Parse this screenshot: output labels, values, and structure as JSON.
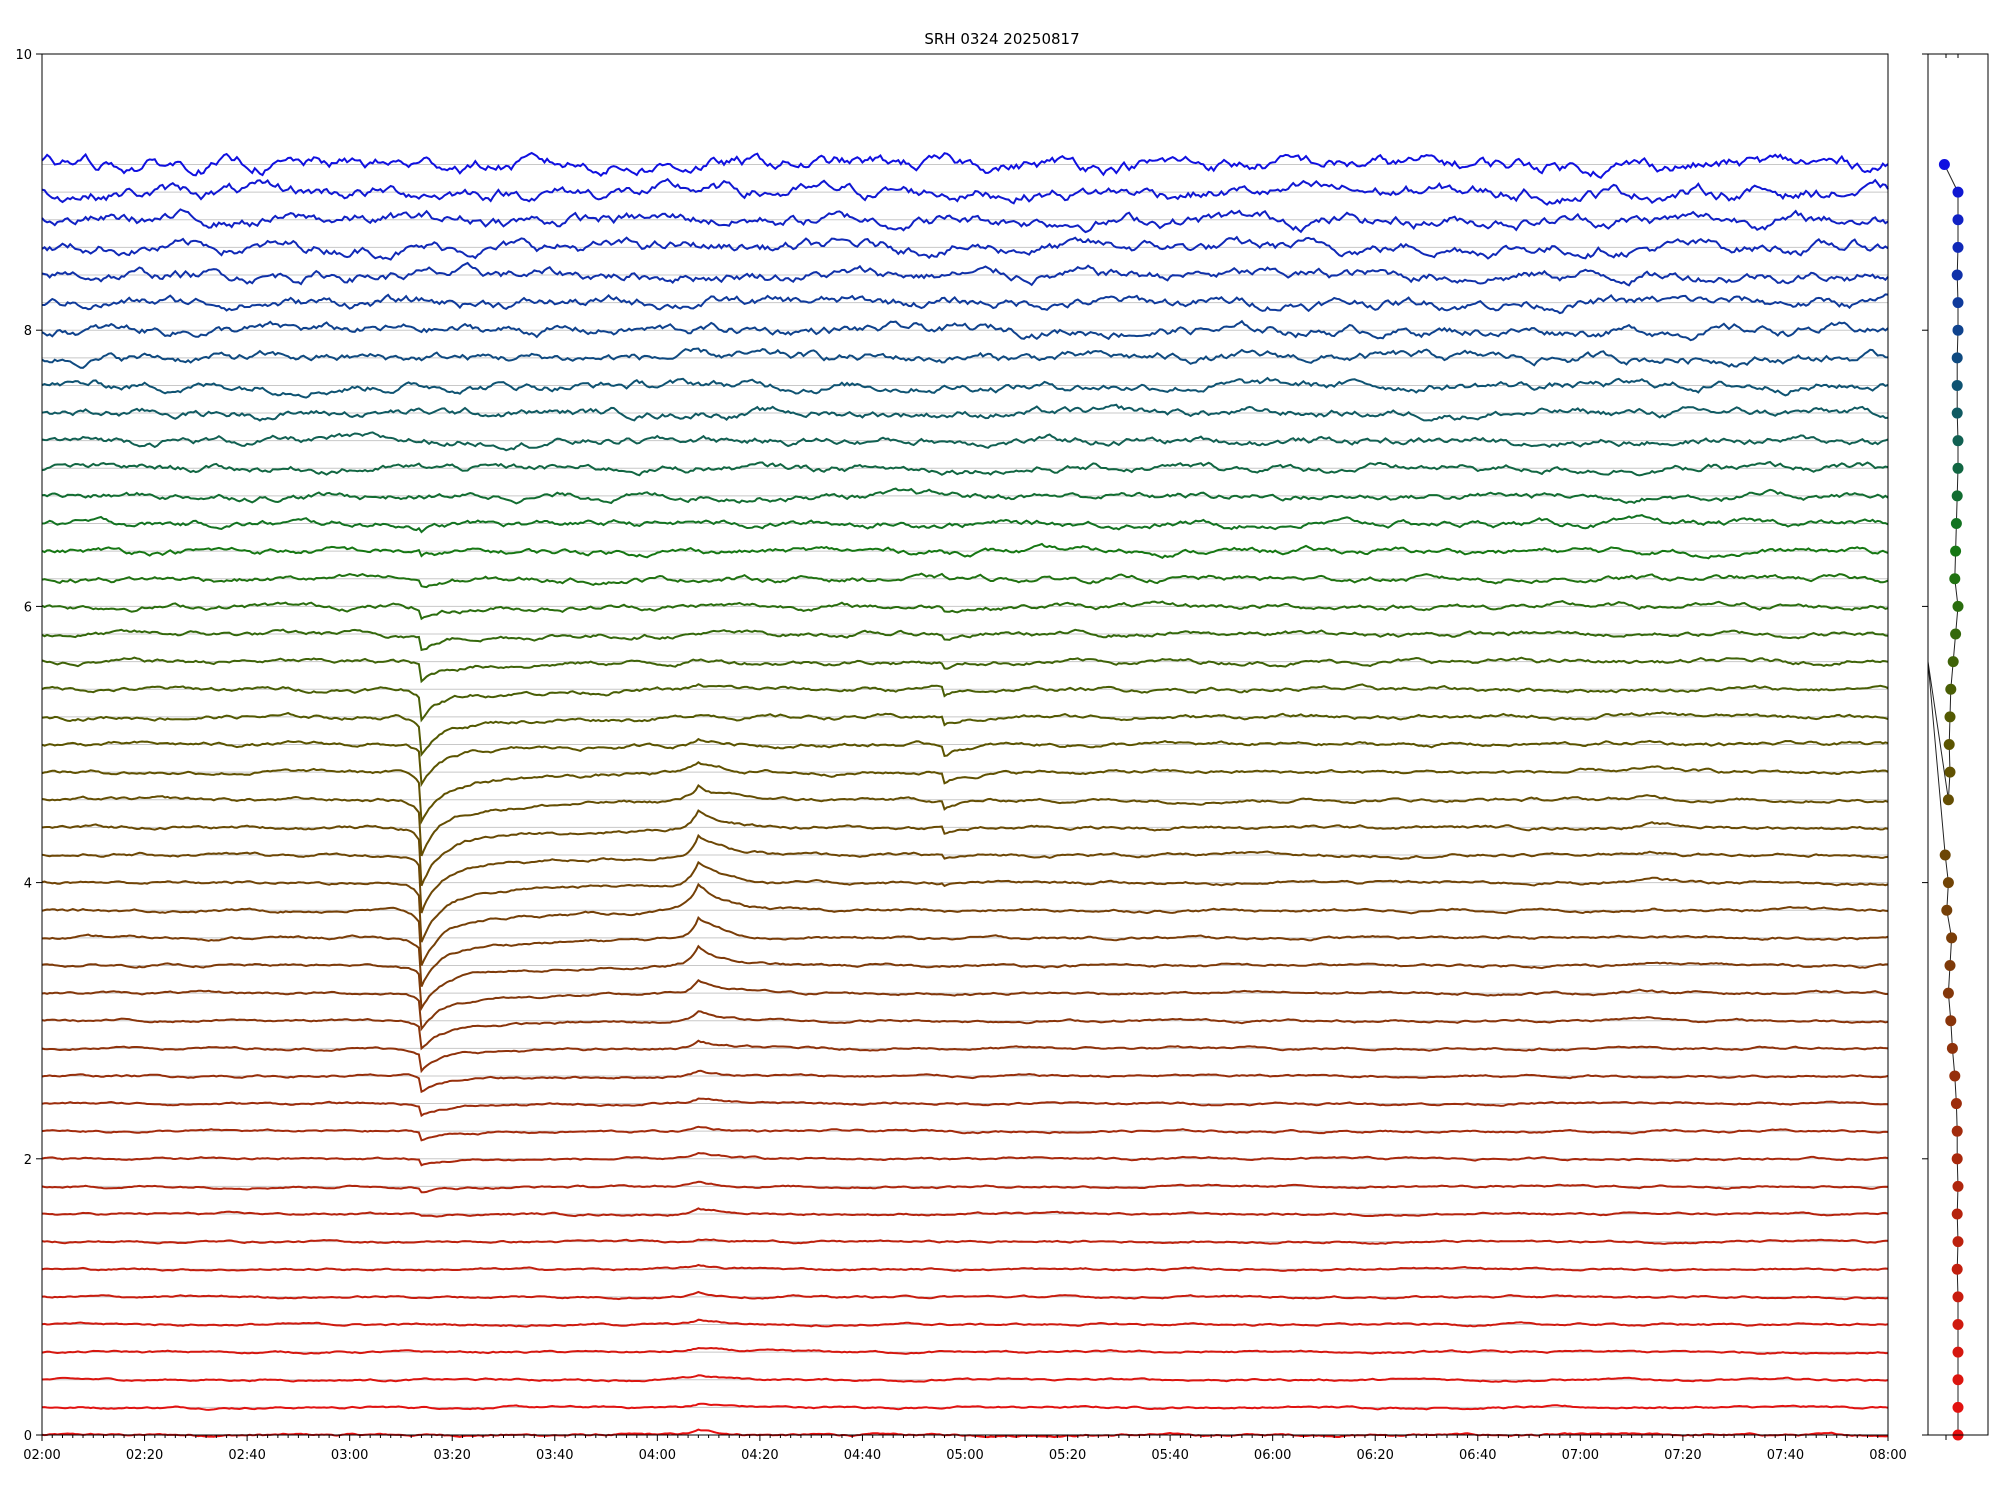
{
  "chart_data": {
    "type": "line",
    "title": "SRH 0324 20250817",
    "xlabel": "",
    "ylabel": "",
    "x_range": [
      "02:00",
      "08:00"
    ],
    "x_tick_labels": [
      "02:00",
      "02:20",
      "02:40",
      "03:00",
      "03:20",
      "03:40",
      "04:00",
      "04:20",
      "04:40",
      "05:00",
      "05:20",
      "05:40",
      "06:00",
      "06:20",
      "06:40",
      "07:00",
      "07:20",
      "07:40",
      "08:00"
    ],
    "ylim": [
      0,
      10
    ],
    "y_tick_labels": [
      "0",
      "2",
      "4",
      "6",
      "8",
      "10"
    ],
    "grid": "horizontal",
    "legend": "none",
    "series_count": 47,
    "series_offset_step": 0.2,
    "color_start": "#e81010",
    "color_end": "#1010e0",
    "events": [
      {
        "time": "03:14",
        "type": "dip"
      },
      {
        "time": "04:08",
        "type": "peak"
      },
      {
        "time": "04:56",
        "type": "dip"
      },
      {
        "time": "07:14",
        "type": "step"
      }
    ],
    "side_panel": {
      "type": "scatter",
      "x_offsets": [
        0.0,
        0.0,
        0.0,
        0.0,
        0.0,
        0.0,
        -0.1,
        0.0,
        -0.1,
        0.0,
        -0.1,
        -0.1,
        -0.2,
        -0.4,
        -0.7,
        -0.9,
        -1.2,
        -1.0,
        -0.8,
        -1.4,
        -1.2,
        -1.6,
        -1.3,
        -1.2,
        -1.0,
        -1.1,
        -1.0,
        -0.9,
        -0.6,
        -0.3,
        0.0,
        -0.4,
        -0.3,
        -0.2,
        -0.1,
        0.0,
        0.0,
        -0.1,
        -0.1,
        -0.1,
        0.0,
        0.0,
        -0.1,
        0.0,
        0.0,
        0.0,
        -1.7
      ],
      "outlier": {
        "index": 22,
        "y": 5.6
      }
    }
  }
}
